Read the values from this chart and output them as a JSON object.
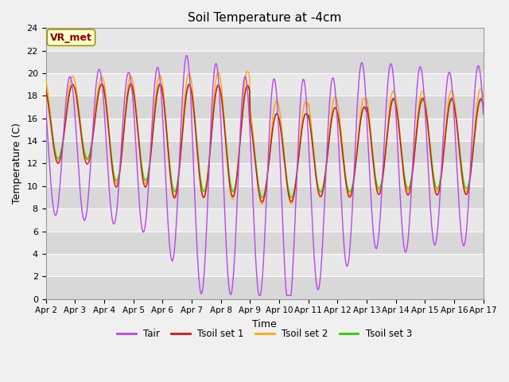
{
  "title": "Soil Temperature at -4cm",
  "xlabel": "Time",
  "ylabel": "Temperature (C)",
  "ylim": [
    0,
    24
  ],
  "yticks": [
    0,
    2,
    4,
    6,
    8,
    10,
    12,
    14,
    16,
    18,
    20,
    22,
    24
  ],
  "x_labels": [
    "Apr 2",
    "Apr 3",
    "Apr 4",
    "Apr 5",
    "Apr 6",
    "Apr 7",
    "Apr 8",
    "Apr 9",
    "Apr 10",
    "Apr 11",
    "Apr 12",
    "Apr 13",
    "Apr 14",
    "Apr 15",
    "Apr 16",
    "Apr 17"
  ],
  "colors": {
    "Tair": "#bb44ee",
    "Tsoil1": "#dd1111",
    "Tsoil2": "#ffaa00",
    "Tsoil3": "#33cc00"
  },
  "legend_labels": [
    "Tair",
    "Tsoil set 1",
    "Tsoil set 2",
    "Tsoil set 3"
  ],
  "annotation_text": "VR_met",
  "annotation_color": "#880000",
  "annotation_bg": "#ffffcc",
  "annotation_edge": "#999900",
  "bg_light": "#e8e8e8",
  "bg_dark": "#d8d8d8",
  "linewidth": 1.0,
  "days": 15,
  "n_points": 720
}
